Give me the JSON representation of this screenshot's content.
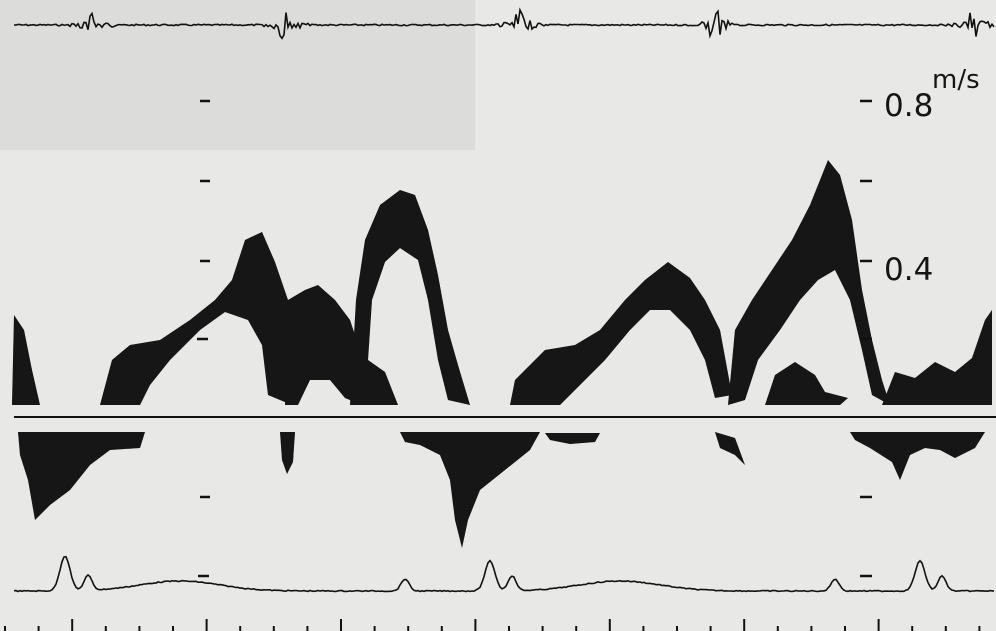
{
  "scale": {
    "unit": "m/s",
    "labels": [
      "0.8",
      "0.4"
    ]
  }
}
